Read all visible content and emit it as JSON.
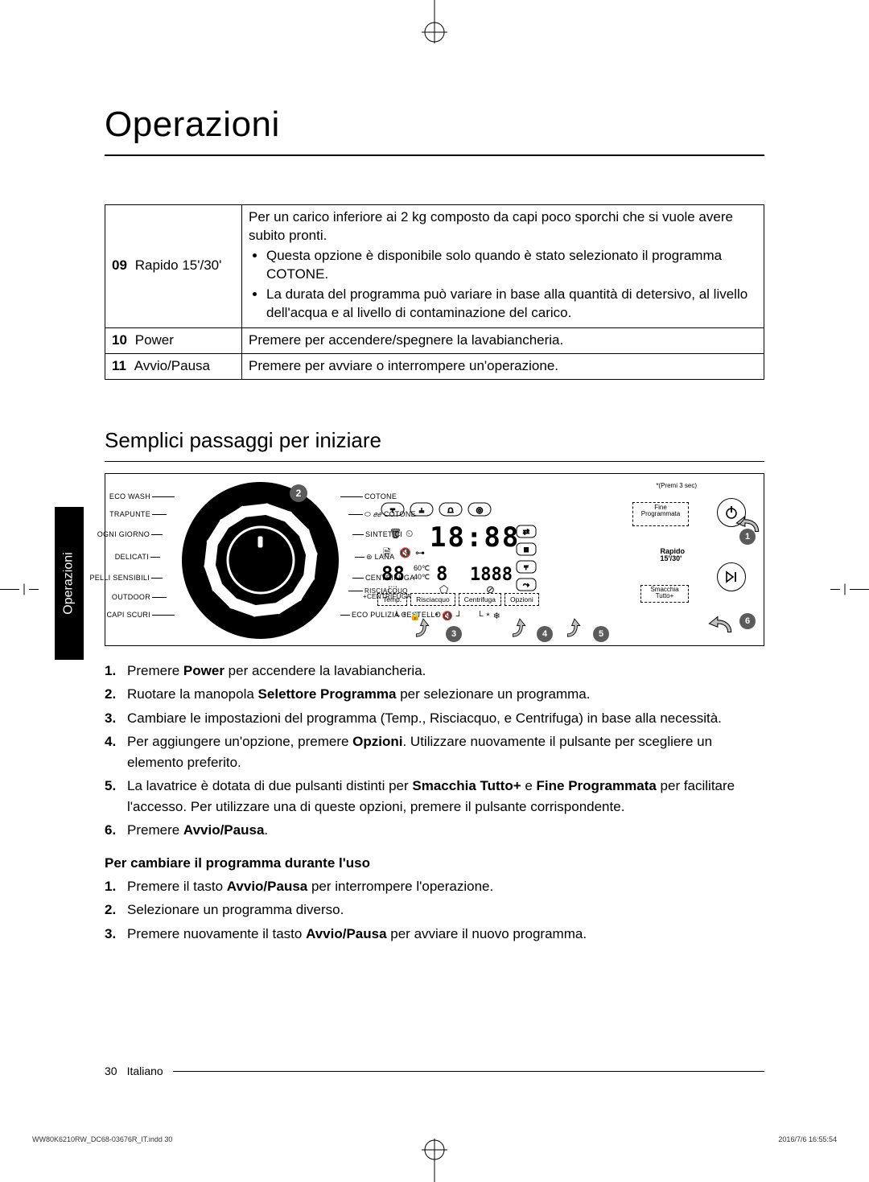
{
  "title": "Operazioni",
  "table": {
    "row9_num": "09",
    "row9_name": "Rapido 15'/30'",
    "row9_para": "Per un carico inferiore ai 2 kg composto da capi poco sporchi che si vuole avere subito pronti.",
    "row9_b1": "Questa opzione è disponibile solo quando è stato selezionato il programma COTONE.",
    "row9_b2": "La durata del programma può variare in base alla quantità di detersivo, al livello dell'acqua e al livello di contaminazione del carico.",
    "row10_num": "10",
    "row10_name": "Power",
    "row10_desc": "Premere per accendere/spegnere la lavabiancheria.",
    "row11_num": "11",
    "row11_name": "Avvio/Pausa",
    "row11_desc": "Premere per avviare o interrompere un'operazione."
  },
  "subheading": "Semplici passaggi per iniziare",
  "diagram": {
    "badge1": "1",
    "badge2": "2",
    "badge3": "3",
    "badge4": "4",
    "badge5": "5",
    "badge6": "6",
    "programs_left": [
      "ECO WASH",
      "TRAPUNTE",
      "OGNI GIORNO",
      "DELICATI",
      "PELLI SENSIBILI",
      "OUTDOOR",
      "CAPI SCURI"
    ],
    "programs_right": [
      "COTONE",
      "COTONE",
      "SINTETICI",
      "LANA",
      "CENTRIFUGA",
      "RISCIACQUO\n+CENTRIFUGA",
      "ECO PULIZIA CESTELLO"
    ],
    "asterisk": "*(Premi 3 sec)",
    "fine": "Fine\nProgrammata",
    "rapido": "Rapido\n15'/30'",
    "smacchia": "Smacchia\nTutto+",
    "buttons": [
      "Temp.",
      "Risciacquo",
      "Centrifuga",
      "Opzioni"
    ]
  },
  "steps": {
    "s1a": "Premere ",
    "s1b": "Power",
    "s1c": " per accendere la lavabiancheria.",
    "s2a": "Ruotare la manopola ",
    "s2b": "Selettore Programma",
    "s2c": " per selezionare un programma.",
    "s3": "Cambiare le impostazioni del programma (Temp., Risciacquo, e Centrifuga) in base alla necessità.",
    "s4a": "Per aggiungere un'opzione, premere ",
    "s4b": "Opzioni",
    "s4c": ". Utilizzare nuovamente il pulsante per scegliere un elemento preferito.",
    "s5a": "La lavatrice è dotata di due pulsanti distinti per ",
    "s5b": "Smacchia Tutto+",
    "s5c": " e ",
    "s5d": "Fine Programmata",
    "s5e": " per facilitare l'accesso. Per utilizzare una di queste opzioni, premere il pulsante corrispondente.",
    "s6a": "Premere ",
    "s6b": "Avvio/Pausa",
    "s6c": "."
  },
  "sub2": "Per cambiare il programma durante l'uso",
  "steps2": {
    "s1a": "Premere il tasto ",
    "s1b": "Avvio/Pausa",
    "s1c": " per interrompere l'operazione.",
    "s2": "Selezionare un programma diverso.",
    "s3a": "Premere nuovamente il tasto ",
    "s3b": "Avvio/Pausa",
    "s3c": " per avviare il nuovo programma."
  },
  "sidetab": "Operazioni",
  "footer_page": "30",
  "footer_lang": "Italiano",
  "print_left": "WW80K6210RW_DC68-03676R_IT.indd   30",
  "print_right": "2016/7/6   16:55:54",
  "colors": {
    "badge": "#5b5b5b"
  }
}
